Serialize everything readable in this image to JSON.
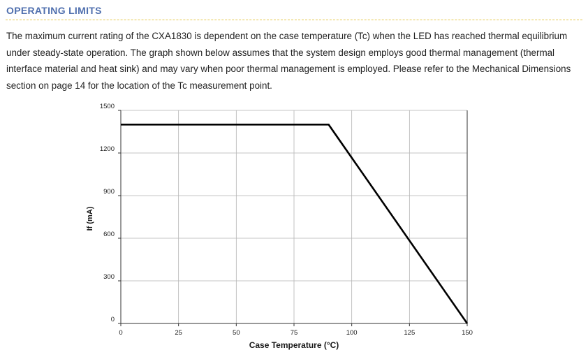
{
  "section": {
    "title": "OPERATING LIMITS",
    "paragraph": "The maximum current rating of the CXA1830 is dependent on the case temperature (Tc) when the LED has reached thermal equilibrium under steady-state operation. The graph shown below assumes that the system design employs good thermal management (thermal interface material and heat sink) and may vary when poor thermal management is employed. Please refer to the Mechanical Dimensions section on page 14 for the location of the Tc measurement point."
  },
  "colors": {
    "title": "#4f6fae",
    "rule": "#e5c84a",
    "line": "#000000",
    "grid": "#b3b3b3"
  },
  "chart_data": {
    "type": "line",
    "title": "",
    "xlabel": "Case Temperature (°C)",
    "ylabel": "If (mA)",
    "xlim": [
      0,
      150
    ],
    "ylim": [
      0,
      1500
    ],
    "xticks": [
      0,
      25,
      50,
      75,
      100,
      125,
      150
    ],
    "yticks": [
      0,
      300,
      600,
      900,
      1200,
      1500
    ],
    "grid": true,
    "legend": "none",
    "series": [
      {
        "x": [
          0,
          90,
          150
        ],
        "y": [
          1400,
          1400,
          0
        ]
      }
    ]
  }
}
